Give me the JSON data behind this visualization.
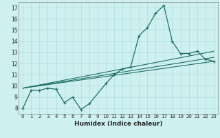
{
  "xlabel": "Humidex (Indice chaleur)",
  "bg_color": "#cff0f0",
  "line_color": "#1e6e64",
  "grid_color": "#aadddd",
  "xlim": [
    -0.5,
    23.5
  ],
  "ylim": [
    7.5,
    17.5
  ],
  "xticks": [
    0,
    1,
    2,
    3,
    4,
    5,
    6,
    7,
    8,
    9,
    10,
    11,
    12,
    13,
    14,
    15,
    16,
    17,
    18,
    19,
    20,
    21,
    22,
    23
  ],
  "yticks": [
    8,
    9,
    10,
    11,
    12,
    13,
    14,
    15,
    16,
    17
  ],
  "series1_x": [
    0,
    1,
    2,
    3,
    4,
    5,
    6,
    7,
    8,
    10,
    11,
    12,
    13,
    14,
    15,
    16,
    17,
    18,
    19,
    20,
    21,
    22,
    23
  ],
  "series1_y": [
    8.0,
    9.6,
    9.6,
    9.8,
    9.7,
    8.5,
    9.0,
    7.9,
    8.4,
    10.2,
    11.0,
    11.5,
    11.7,
    14.5,
    15.2,
    16.5,
    17.2,
    14.0,
    12.9,
    12.9,
    13.1,
    12.4,
    12.2
  ],
  "trend1_x": [
    0,
    23
  ],
  "trend1_y": [
    9.8,
    12.2
  ],
  "trend2_x": [
    0,
    23
  ],
  "trend2_y": [
    9.8,
    13.1
  ],
  "trend3_x": [
    0,
    23
  ],
  "trend3_y": [
    9.8,
    12.55
  ]
}
